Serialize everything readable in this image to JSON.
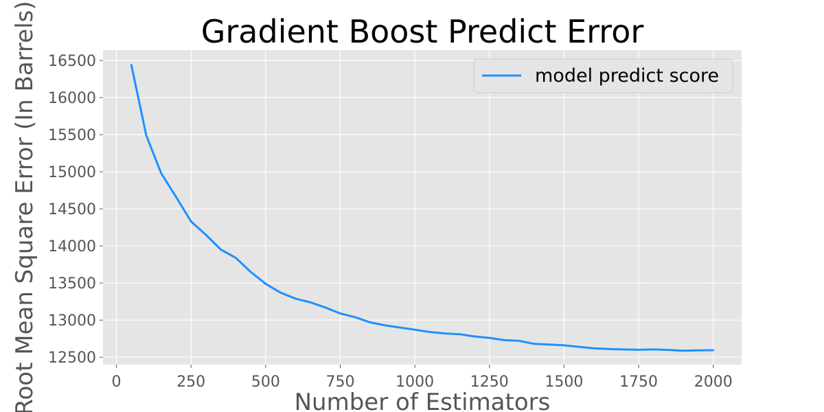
{
  "chart_data": {
    "type": "line",
    "title": "Gradient Boost Predict Error",
    "xlabel": "Number of Estimators",
    "ylabel": "Root Mean Square Error (In Barrels)",
    "xlim": [
      -45,
      2095
    ],
    "ylim": [
      12400,
      16640
    ],
    "xticks": [
      0,
      250,
      500,
      750,
      1000,
      1250,
      1500,
      1750,
      2000
    ],
    "yticks": [
      12500,
      13000,
      13500,
      14000,
      14500,
      15000,
      15500,
      16000,
      16500
    ],
    "grid": true,
    "legend_position": "top-right",
    "series": [
      {
        "name": "model predict score",
        "color": "#1e90ff",
        "x": [
          50,
          100,
          150,
          200,
          250,
          300,
          350,
          400,
          450,
          500,
          550,
          600,
          650,
          700,
          750,
          800,
          850,
          900,
          950,
          1000,
          1050,
          1100,
          1150,
          1200,
          1250,
          1300,
          1350,
          1400,
          1450,
          1500,
          1550,
          1600,
          1650,
          1700,
          1750,
          1800,
          1850,
          1900,
          1950,
          2000
        ],
        "y": [
          16440,
          15490,
          14980,
          14660,
          14330,
          14150,
          13950,
          13840,
          13650,
          13490,
          13370,
          13290,
          13240,
          13170,
          13090,
          13040,
          12970,
          12930,
          12900,
          12870,
          12840,
          12820,
          12810,
          12780,
          12760,
          12730,
          12720,
          12680,
          12670,
          12660,
          12640,
          12620,
          12610,
          12605,
          12600,
          12605,
          12598,
          12587,
          12592,
          12594
        ]
      }
    ]
  }
}
